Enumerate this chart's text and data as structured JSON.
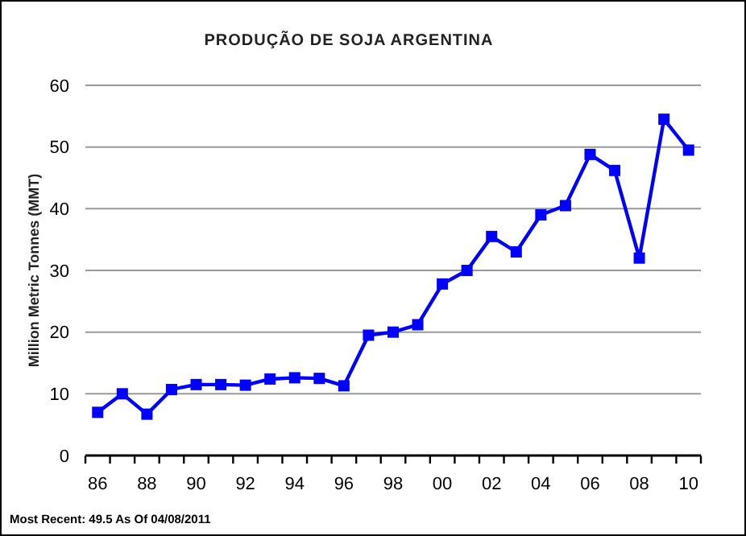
{
  "chart_data": {
    "type": "line",
    "title": "PRODUÇÃO DE SOJA ARGENTINA",
    "ylabel": "Million Metric Tonnes (MMT)",
    "categories": [
      "86",
      null,
      "88",
      null,
      "90",
      null,
      "92",
      null,
      "94",
      null,
      "96",
      null,
      "98",
      null,
      "00",
      null,
      "02",
      null,
      "04",
      null,
      "06",
      null,
      "08",
      null,
      "10"
    ],
    "series": [
      {
        "color": "#0000ff",
        "values": [
          7.0,
          10.0,
          6.7,
          10.7,
          11.5,
          11.5,
          11.4,
          12.4,
          12.6,
          12.5,
          11.3,
          19.5,
          20.0,
          21.2,
          27.8,
          30.0,
          35.5,
          33.0,
          39.0,
          40.5,
          48.8,
          46.2,
          32.0,
          54.5,
          49.5
        ]
      }
    ],
    "ylim": [
      0,
      60
    ],
    "yticks": [
      0,
      10,
      20,
      30,
      40,
      50,
      60
    ],
    "grid": "y",
    "marker": "square",
    "line_style": "solid",
    "annotations": [
      "Most Recent: 49.5 As Of 04/08/2011"
    ]
  }
}
